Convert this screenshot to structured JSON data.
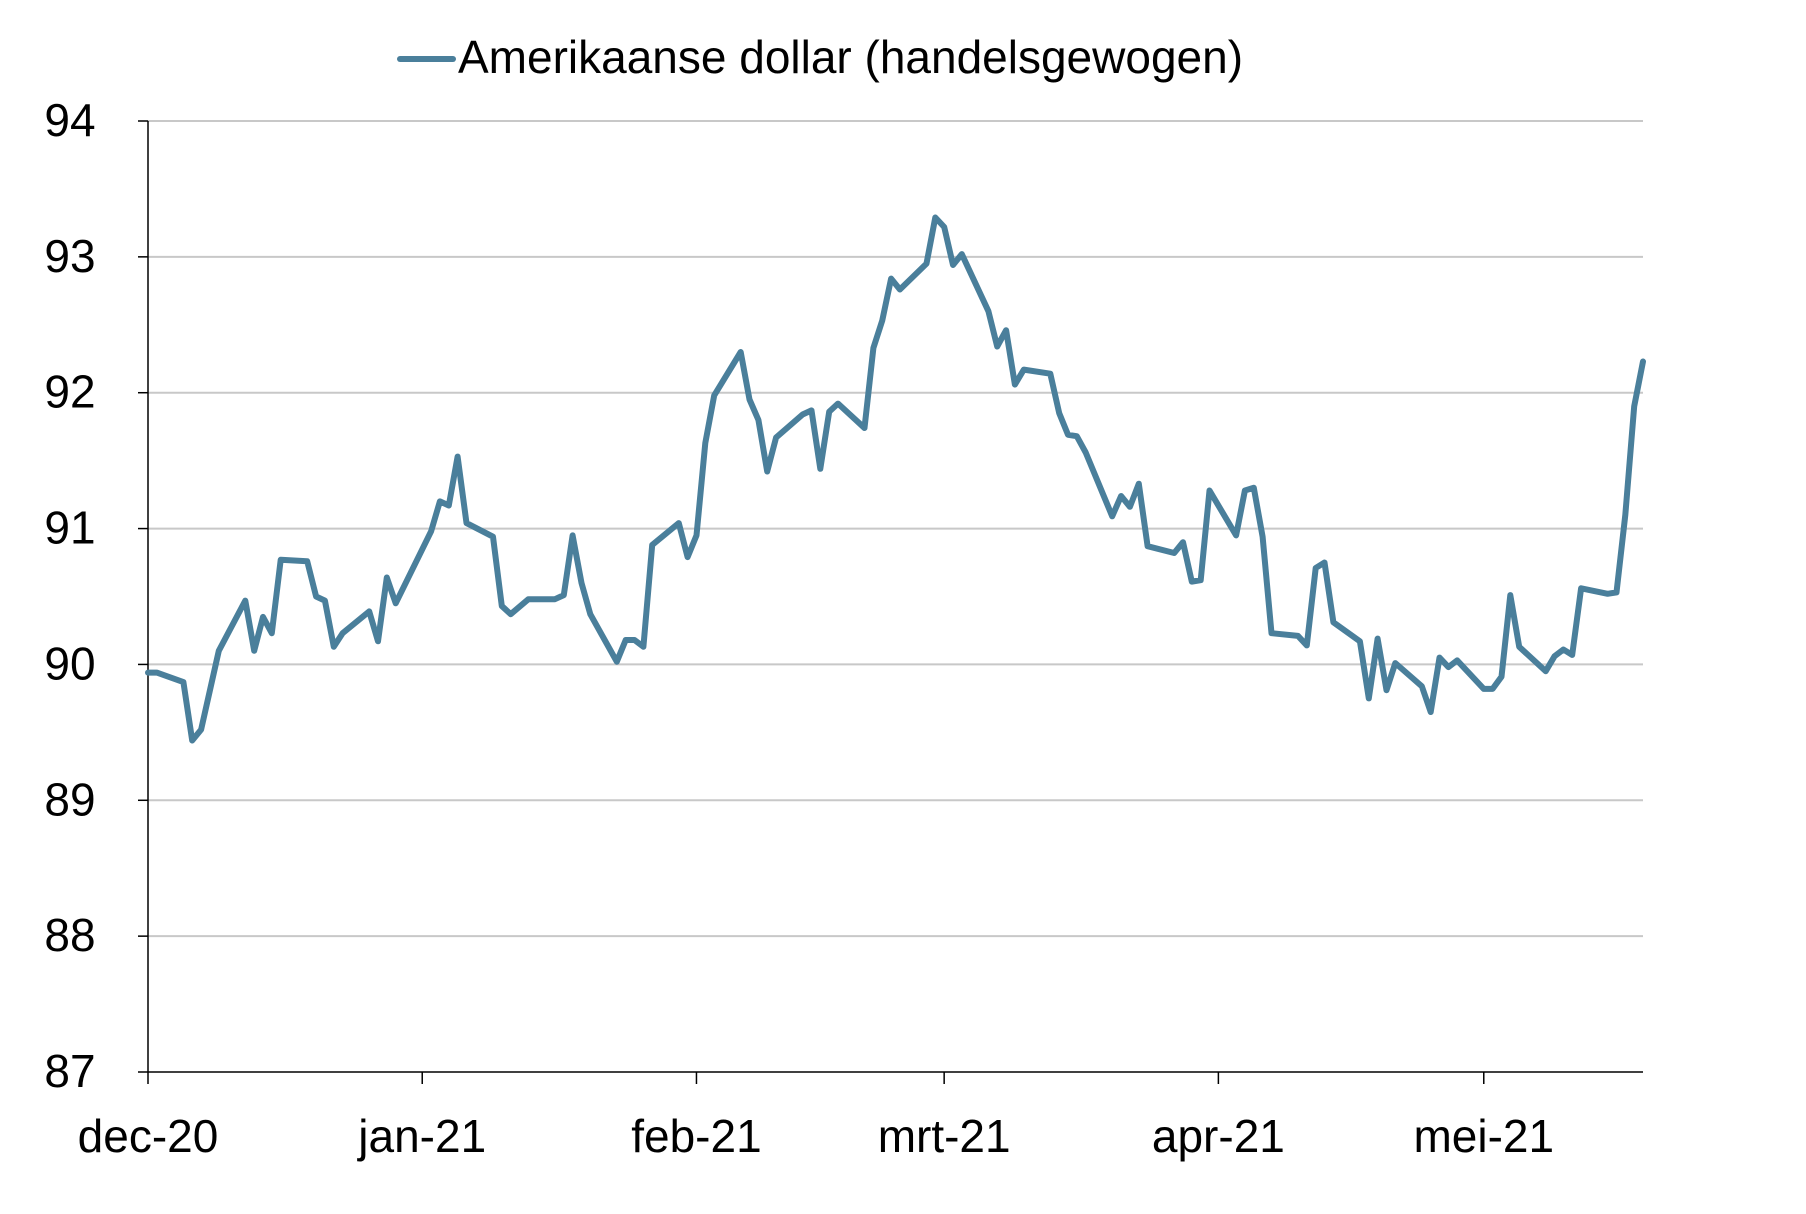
{
  "chart_data": {
    "type": "line",
    "title": "",
    "xlabel": "",
    "ylabel": "",
    "x_start": "2020-12-01",
    "x_end": "2021-05-19",
    "ylim": [
      87,
      94
    ],
    "yticks": [
      87,
      88,
      89,
      90,
      91,
      92,
      93,
      94
    ],
    "y_tick_labels": [
      "87",
      "88",
      "89",
      "90",
      "91",
      "92",
      "93",
      "94"
    ],
    "x_ticks": [
      {
        "date": "2020-12-01",
        "label": "dec-20"
      },
      {
        "date": "2021-01-01",
        "label": "jan-21"
      },
      {
        "date": "2021-02-01",
        "label": "feb-21"
      },
      {
        "date": "2021-03-01",
        "label": "mrt-21"
      },
      {
        "date": "2021-04-01",
        "label": "apr-21"
      },
      {
        "date": "2021-05-01",
        "label": "mei-21"
      }
    ],
    "grid": true,
    "legend": "top",
    "series": [
      {
        "name": "Amerikaanse dollar (handelsgewogen)",
        "color": "#4a7f9b",
        "points": [
          [
            "2020-12-01",
            89.94
          ],
          [
            "2020-12-02",
            89.94
          ],
          [
            "2020-12-05",
            89.87
          ],
          [
            "2020-12-06",
            89.44
          ],
          [
            "2020-12-07",
            89.52
          ],
          [
            "2020-12-09",
            90.1
          ],
          [
            "2020-12-12",
            90.47
          ],
          [
            "2020-12-13",
            90.1
          ],
          [
            "2020-12-14",
            90.35
          ],
          [
            "2020-12-15",
            90.23
          ],
          [
            "2020-12-16",
            90.77
          ],
          [
            "2020-12-19",
            90.76
          ],
          [
            "2020-12-20",
            90.5
          ],
          [
            "2020-12-21",
            90.47
          ],
          [
            "2020-12-22",
            90.13
          ],
          [
            "2020-12-23",
            90.23
          ],
          [
            "2020-12-26",
            90.39
          ],
          [
            "2020-12-27",
            90.17
          ],
          [
            "2020-12-28",
            90.64
          ],
          [
            "2020-12-29",
            90.45
          ],
          [
            "2021-01-02",
            90.98
          ],
          [
            "2021-01-03",
            91.2
          ],
          [
            "2021-01-04",
            91.17
          ],
          [
            "2021-01-05",
            91.53
          ],
          [
            "2021-01-06",
            91.04
          ],
          [
            "2021-01-09",
            90.94
          ],
          [
            "2021-01-10",
            90.43
          ],
          [
            "2021-01-11",
            90.37
          ],
          [
            "2021-01-13",
            90.48
          ],
          [
            "2021-01-16",
            90.48
          ],
          [
            "2021-01-17",
            90.51
          ],
          [
            "2021-01-18",
            90.95
          ],
          [
            "2021-01-19",
            90.6
          ],
          [
            "2021-01-20",
            90.37
          ],
          [
            "2021-01-23",
            90.02
          ],
          [
            "2021-01-24",
            90.18
          ],
          [
            "2021-01-25",
            90.18
          ],
          [
            "2021-01-26",
            90.13
          ],
          [
            "2021-01-27",
            90.88
          ],
          [
            "2021-01-30",
            91.04
          ],
          [
            "2021-01-31",
            90.79
          ],
          [
            "2021-02-01",
            90.95
          ],
          [
            "2021-02-02",
            91.63
          ],
          [
            "2021-02-03",
            91.98
          ],
          [
            "2021-02-06",
            92.3
          ],
          [
            "2021-02-07",
            91.95
          ],
          [
            "2021-02-08",
            91.8
          ],
          [
            "2021-02-09",
            91.42
          ],
          [
            "2021-02-10",
            91.67
          ],
          [
            "2021-02-13",
            91.84
          ],
          [
            "2021-02-14",
            91.87
          ],
          [
            "2021-02-15",
            91.44
          ],
          [
            "2021-02-16",
            91.86
          ],
          [
            "2021-02-17",
            91.92
          ],
          [
            "2021-02-20",
            91.74
          ],
          [
            "2021-02-21",
            92.33
          ],
          [
            "2021-02-22",
            92.53
          ],
          [
            "2021-02-23",
            92.84
          ],
          [
            "2021-02-24",
            92.76
          ],
          [
            "2021-02-27",
            92.95
          ],
          [
            "2021-02-28",
            93.29
          ],
          [
            "2021-03-01",
            93.22
          ],
          [
            "2021-03-02",
            92.94
          ],
          [
            "2021-03-03",
            93.02
          ],
          [
            "2021-03-06",
            92.6
          ],
          [
            "2021-03-07",
            92.34
          ],
          [
            "2021-03-08",
            92.46
          ],
          [
            "2021-03-09",
            92.06
          ],
          [
            "2021-03-10",
            92.17
          ],
          [
            "2021-03-13",
            92.14
          ],
          [
            "2021-03-14",
            91.85
          ],
          [
            "2021-03-15",
            91.69
          ],
          [
            "2021-03-16",
            91.68
          ],
          [
            "2021-03-17",
            91.56
          ],
          [
            "2021-03-20",
            91.09
          ],
          [
            "2021-03-21",
            91.24
          ],
          [
            "2021-03-22",
            91.16
          ],
          [
            "2021-03-23",
            91.33
          ],
          [
            "2021-03-24",
            90.87
          ],
          [
            "2021-03-27",
            90.82
          ],
          [
            "2021-03-28",
            90.9
          ],
          [
            "2021-03-29",
            90.61
          ],
          [
            "2021-03-30",
            90.62
          ],
          [
            "2021-03-31",
            91.28
          ],
          [
            "2021-04-03",
            90.95
          ],
          [
            "2021-04-04",
            91.28
          ],
          [
            "2021-04-05",
            91.3
          ],
          [
            "2021-04-06",
            90.94
          ],
          [
            "2021-04-07",
            90.23
          ],
          [
            "2021-04-10",
            90.21
          ],
          [
            "2021-04-11",
            90.14
          ],
          [
            "2021-04-12",
            90.71
          ],
          [
            "2021-04-13",
            90.75
          ],
          [
            "2021-04-14",
            90.31
          ],
          [
            "2021-04-17",
            90.17
          ],
          [
            "2021-04-18",
            89.75
          ],
          [
            "2021-04-19",
            90.19
          ],
          [
            "2021-04-20",
            89.81
          ],
          [
            "2021-04-21",
            90.01
          ],
          [
            "2021-04-24",
            89.84
          ],
          [
            "2021-04-25",
            89.65
          ],
          [
            "2021-04-26",
            90.05
          ],
          [
            "2021-04-27",
            89.98
          ],
          [
            "2021-04-28",
            90.03
          ],
          [
            "2021-05-01",
            89.82
          ],
          [
            "2021-05-02",
            89.82
          ],
          [
            "2021-05-03",
            89.91
          ],
          [
            "2021-05-04",
            90.51
          ],
          [
            "2021-05-05",
            90.13
          ],
          [
            "2021-05-08",
            89.95
          ],
          [
            "2021-05-09",
            90.06
          ],
          [
            "2021-05-10",
            90.11
          ],
          [
            "2021-05-11",
            90.07
          ],
          [
            "2021-05-12",
            90.56
          ],
          [
            "2021-05-15",
            90.52
          ],
          [
            "2021-05-16",
            90.53
          ],
          [
            "2021-05-17",
            91.1
          ],
          [
            "2021-05-18",
            91.9
          ],
          [
            "2021-05-19",
            92.23
          ]
        ]
      }
    ]
  }
}
